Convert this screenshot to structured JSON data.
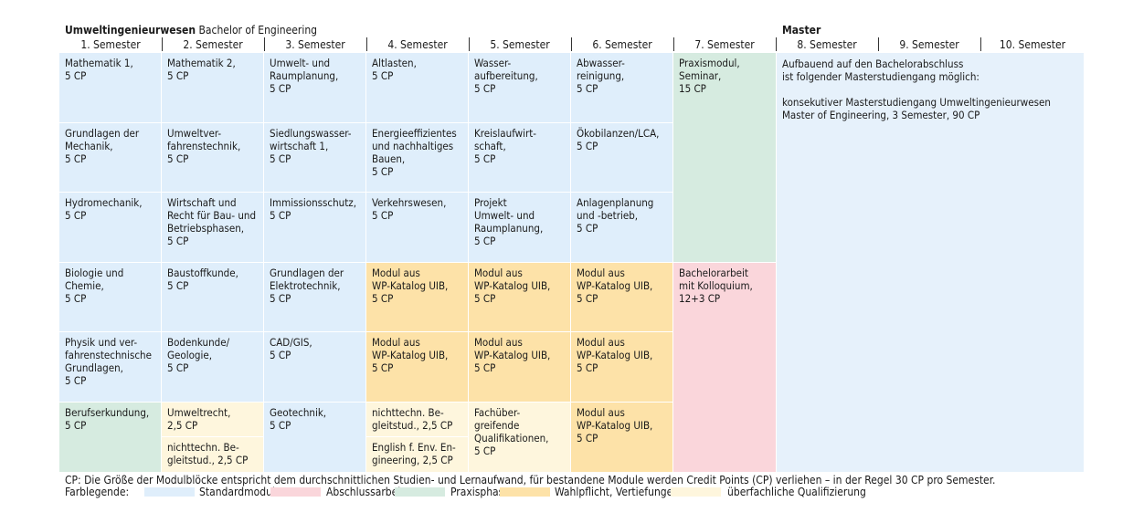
{
  "header": {
    "program_bold": "Umweltingenieurwesen",
    "program_rest": " Bachelor of Engineering",
    "master": "Master"
  },
  "semesters": [
    "1. Semester",
    "2. Semester",
    "3. Semester",
    "4. Semester",
    "5. Semester",
    "6. Semester",
    "7. Semester",
    "8. Semester",
    "9. Semester",
    "10. Semester"
  ],
  "modules": {
    "r1": [
      "Mathematik 1,\n5 CP",
      "Mathematik 2,\n5 CP",
      "Umwelt- und\nRaumplanung,\n5 CP",
      "Altlasten,\n5 CP",
      "Wasser-\naufbereitung,\n5 CP",
      "Abwasser-\nreinigung,\n5 CP"
    ],
    "r2": [
      "Grundlagen der\nMechanik,\n5 CP",
      "Umweltver-\nfahrenstechnik,\n5 CP",
      "Siedlungswasser-\nwirtschaft 1,\n5 CP",
      "Energieeffizientes\nund nachhaltiges\nBauen,\n5 CP",
      "Kreislaufwirt-\nschaft,\n5 CP",
      "Ökobilanzen/LCA,\n5 CP"
    ],
    "r3": [
      "Hydromechanik,\n5 CP",
      "Wirtschaft und\nRecht für Bau- und\nBetriebsphasen,\n5 CP",
      "Immissionsschutz,\n5 CP",
      "Verkehrswesen,\n5 CP",
      "Projekt\nUmwelt- und\nRaumplanung,\n5 CP",
      "Anlagenplanung\nund -betrieb,\n5 CP"
    ],
    "r4": [
      "Biologie und\nChemie,\n5 CP",
      "Baustoffkunde,\n5 CP",
      "Grundlagen der\nElektrotechnik,\n5 CP",
      "Modul aus\nWP-Katalog UIB,\n5 CP",
      "Modul aus\nWP-Katalog UIB,\n5 CP",
      "Modul aus\nWP-Katalog UIB,\n5 CP"
    ],
    "r5": [
      "Physik und ver-\nfahrenstechnische\nGrundlagen,\n5 CP",
      "Bodenkunde/\nGeologie,\n5 CP",
      "CAD/GIS,\n5 CP",
      "Modul aus\nWP-Katalog UIB,\n5 CP",
      "Modul aus\nWP-Katalog UIB,\n5 CP",
      "Modul aus\nWP-Katalog UIB,\n5 CP"
    ],
    "r6": [
      "Berufserkundung,\n5 CP",
      "Umweltrecht,\n2,5 CP",
      "Geotechnik,\n5 CP",
      "nichttechn. Be-\ngleitstud., 2,5 CP",
      "Fachüber-\ngreifende\nQualifikationen,\n5 CP",
      "Modul aus\nWP-Katalog UIB,\n5 CP"
    ],
    "r6b": [
      "nichttechn. Be-\ngleitstud., 2,5 CP",
      "English f. Env. En-\ngineering, 2,5 CP"
    ],
    "praxis": "Praxismodul,\nSeminar,\n15 CP",
    "bachelor": "Bachelorarbeit\nmit Kolloquium,\n12+3 CP"
  },
  "master_text": {
    "p1": "Aufbauend auf den Bachelorabschluss\nist folgender Masterstudiengang möglich:",
    "p2": "konsekutiver Masterstudiengang Umweltingenieurwesen\nMaster of Engineering, 3 Semester, 90 CP"
  },
  "footer": "CP: Die Größe der Modulblöcke entspricht dem durchschnittlichen Studien- und Lernaufwand, für bestandene Module werden Credit Points (CP) verliehen – in der Regel 30 CP pro Semester.",
  "legend": {
    "title": "Farblegende:",
    "items": [
      {
        "label": "Standardmodule",
        "color": "#dfeefb"
      },
      {
        "label": "Abschlussarbeit",
        "color": "#fad6db"
      },
      {
        "label": "Praxisphase",
        "color": "#d6ebe0"
      },
      {
        "label": "Wahlpflicht, Vertiefungen",
        "color": "#fde2a8"
      },
      {
        "label": "überfachliche Qualifizierung",
        "color": "#fef6dd"
      }
    ]
  }
}
